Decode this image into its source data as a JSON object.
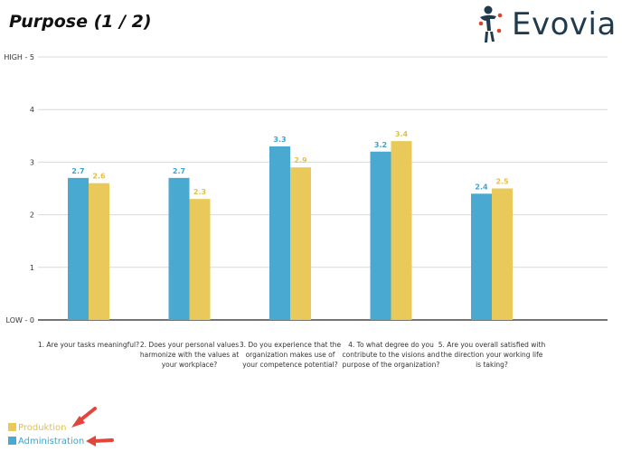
{
  "header": {
    "title": "Purpose (1 / 2)",
    "logo_text": "Evovia"
  },
  "colors": {
    "produktion": "#e8c95a",
    "administration": "#4aa9d1",
    "produktion_label": "#e3c04a",
    "administration_label": "#3ea3cf",
    "arrow": "#e0463c",
    "logo_dark": "#1f3b4d",
    "logo_red": "#d9442f"
  },
  "legend": {
    "items": [
      {
        "label": "Produktion",
        "color_key": "produktion"
      },
      {
        "label": "Administration",
        "color_key": "administration"
      }
    ]
  },
  "chart_data": {
    "type": "bar",
    "ylim": [
      0,
      5
    ],
    "yticks": [
      {
        "value": 0,
        "label": "LOW - 0"
      },
      {
        "value": 1,
        "label": "1"
      },
      {
        "value": 2,
        "label": "2"
      },
      {
        "value": 3,
        "label": "3"
      },
      {
        "value": 4,
        "label": "4"
      },
      {
        "value": 5,
        "label": "HIGH - 5"
      }
    ],
    "grid": true,
    "legend_position": "bottom-left",
    "categories": [
      "1. Are your tasks meaningful?",
      "2. Does your personal values harmonize with the values at your workplace?",
      "3. Do you experience that the organization makes use of your competence potential?",
      "4. To what degree do you contribute to the visions and purpose of the organization?",
      "5. Are you overall satisfied with the direction your working life is taking?"
    ],
    "category_lines": [
      [
        "1. Are your tasks meaningful?"
      ],
      [
        "2. Does your personal values",
        "harmonize with the values at",
        "your workplace?"
      ],
      [
        "3. Do you experience that the",
        "organization makes use of",
        "your competence potential?"
      ],
      [
        "4. To what degree do you",
        "contribute to the visions and",
        "purpose of the organization?"
      ],
      [
        "5. Are you overall satisfied with",
        "the direction your working life",
        "is taking?"
      ]
    ],
    "series": [
      {
        "name": "Administration",
        "values": [
          2.7,
          2.7,
          3.3,
          3.2,
          2.4
        ]
      },
      {
        "name": "Produktion",
        "values": [
          2.6,
          2.3,
          2.9,
          3.4,
          2.5
        ]
      }
    ]
  }
}
